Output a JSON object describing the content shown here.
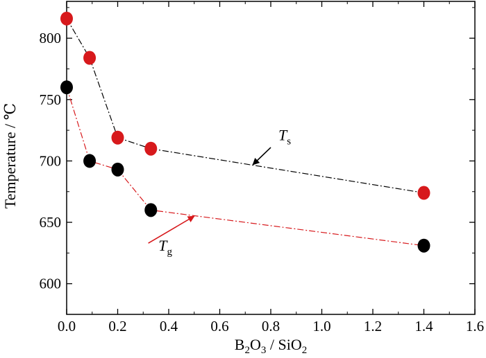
{
  "chart_data": {
    "type": "scatter",
    "xlabel": {
      "main": "B",
      "sub1": "2",
      "mid": "O",
      "sub2": "3",
      "tail": " / SiO",
      "sub3": "2"
    },
    "ylabel": "Temperature / ℃",
    "xlim": [
      0.0,
      1.6
    ],
    "ylim": [
      575,
      830
    ],
    "xticks": [
      0.0,
      0.2,
      0.4,
      0.6,
      0.8,
      1.0,
      1.2,
      1.4,
      1.6
    ],
    "xtick_labels": [
      "0.0",
      "0.2",
      "0.4",
      "0.6",
      "0.8",
      "1.0",
      "1.2",
      "1.4",
      "1.6"
    ],
    "yticks": [
      600,
      650,
      700,
      750,
      800
    ],
    "ytick_labels": [
      "600",
      "650",
      "700",
      "750",
      "800"
    ],
    "grid": false,
    "series": [
      {
        "key": "Ts",
        "marker_color": "#d7191c",
        "line_color": "#000000",
        "x": [
          0.0,
          0.09,
          0.2,
          0.33,
          1.4
        ],
        "y": [
          816,
          784,
          719,
          710,
          674
        ]
      },
      {
        "key": "Tg",
        "marker_color": "#000000",
        "line_color": "#d7191c",
        "x": [
          0.0,
          0.09,
          0.2,
          0.33,
          1.4
        ],
        "y": [
          760,
          700,
          693,
          660,
          631
        ]
      }
    ],
    "annotations": [
      {
        "series": "Ts",
        "main": "T",
        "sub": "s",
        "arrow_color": "#000000",
        "text_x": 0.83,
        "text_y": 717,
        "arrow_from": [
          0.8,
          711
        ],
        "arrow_to": [
          0.73,
          697
        ]
      },
      {
        "series": "Tg",
        "main": "T",
        "sub": "g",
        "arrow_color": "#d7191c",
        "text_x": 0.36,
        "text_y": 627,
        "arrow_from": [
          0.32,
          633
        ],
        "arrow_to": [
          0.5,
          655
        ]
      }
    ]
  }
}
